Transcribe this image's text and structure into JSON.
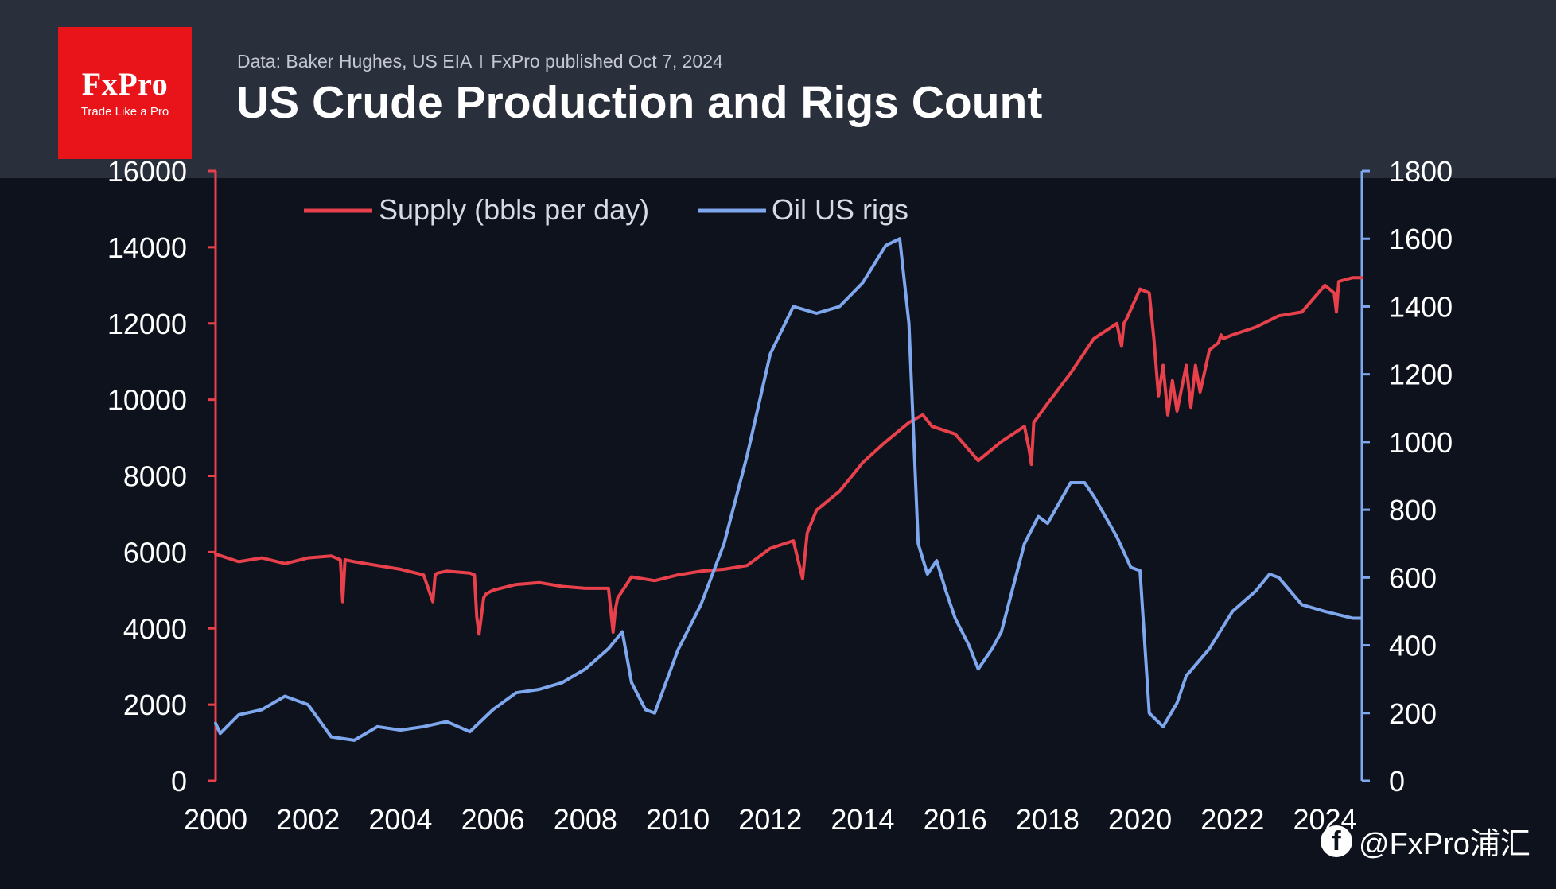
{
  "header": {
    "logo_brand": "FxPro",
    "logo_tagline": "Trade Like a Pro",
    "source_text": "Data: Baker Hughes, US EIA",
    "published_text": "FxPro published Oct 7, 2024",
    "title": "US Crude Production and Rigs Count"
  },
  "watermark": {
    "icon": "facebook-icon",
    "text": "@FxPro浦汇"
  },
  "colors": {
    "supply": "#e8414b",
    "rigs": "#7ea7ee",
    "background": "#0d121c",
    "header": "#2a2f3c",
    "logo": "#e8141a"
  },
  "chart_data": {
    "type": "line",
    "title": "US Crude Production and Rigs Count",
    "x_ticks": [
      "2000",
      "2002",
      "2004",
      "2006",
      "2008",
      "2010",
      "2012",
      "2014",
      "2016",
      "2018",
      "2020",
      "2022",
      "2024"
    ],
    "xlim": [
      2000,
      2024.8
    ],
    "y_left": {
      "ticks": [
        "0",
        "2000",
        "4000",
        "6000",
        "8000",
        "10000",
        "12000",
        "14000",
        "16000"
      ],
      "lim": [
        0,
        16000
      ]
    },
    "y_right": {
      "ticks": [
        "0",
        "200",
        "400",
        "600",
        "800",
        "1000",
        "1200",
        "1400",
        "1600",
        "1800"
      ],
      "lim": [
        0,
        1800
      ]
    },
    "legend": {
      "position": "top-left",
      "entries": [
        "Supply (bbls per day)",
        "Oil US rigs"
      ]
    },
    "grid": false,
    "series": [
      {
        "name": "Supply (bbls per day)",
        "axis": "left",
        "x": [
          2000,
          2000.5,
          2001,
          2001.5,
          2002,
          2002.5,
          2002.7,
          2002.75,
          2002.8,
          2003,
          2003.5,
          2004,
          2004.5,
          2004.7,
          2004.75,
          2004.8,
          2005,
          2005.5,
          2005.6,
          2005.65,
          2005.7,
          2005.8,
          2005.85,
          2006,
          2006.5,
          2007,
          2007.5,
          2008,
          2008.5,
          2008.6,
          2008.65,
          2008.7,
          2009,
          2009.5,
          2010,
          2010.5,
          2011,
          2011.5,
          2012,
          2012.5,
          2012.7,
          2012.8,
          2013,
          2013.5,
          2014,
          2014.5,
          2015,
          2015.3,
          2015.5,
          2016,
          2016.5,
          2017,
          2017.5,
          2017.6,
          2017.65,
          2017.7,
          2018,
          2018.5,
          2019,
          2019.5,
          2019.6,
          2019.65,
          2019.7,
          2020,
          2020.2,
          2020.3,
          2020.4,
          2020.5,
          2020.6,
          2020.7,
          2020.8,
          2021,
          2021.1,
          2021.2,
          2021.3,
          2021.5,
          2021.7,
          2021.75,
          2021.8,
          2022,
          2022.5,
          2023,
          2023.5,
          2024,
          2024.2,
          2024.25,
          2024.3,
          2024.6,
          2024.8
        ],
        "values": [
          5950,
          5750,
          5850,
          5700,
          5850,
          5900,
          5800,
          4700,
          5800,
          5750,
          5650,
          5550,
          5400,
          4700,
          5400,
          5450,
          5500,
          5450,
          5400,
          4300,
          3850,
          4800,
          4900,
          5000,
          5150,
          5200,
          5100,
          5050,
          5050,
          3900,
          4500,
          4800,
          5350,
          5250,
          5400,
          5500,
          5550,
          5650,
          6100,
          6300,
          5300,
          6500,
          7100,
          7600,
          8350,
          8900,
          9400,
          9600,
          9300,
          9100,
          8400,
          8900,
          9300,
          8700,
          8300,
          9400,
          9900,
          10700,
          11600,
          12000,
          11400,
          12000,
          12100,
          12900,
          12800,
          11600,
          10100,
          10900,
          9600,
          10500,
          9700,
          10900,
          9800,
          10900,
          10200,
          11300,
          11500,
          11700,
          11600,
          11700,
          11900,
          12200,
          12300,
          13000,
          12800,
          12300,
          13100,
          13200,
          13200
        ]
      },
      {
        "name": "Oil US rigs",
        "axis": "right",
        "x": [
          2000,
          2000.1,
          2000.5,
          2001,
          2001.5,
          2002,
          2002.5,
          2003,
          2003.5,
          2004,
          2004.5,
          2005,
          2005.5,
          2006,
          2006.5,
          2007,
          2007.5,
          2008,
          2008.5,
          2008.8,
          2009,
          2009.3,
          2009.5,
          2010,
          2010.5,
          2011,
          2011.5,
          2012,
          2012.5,
          2013,
          2013.5,
          2014,
          2014.5,
          2014.8,
          2015,
          2015.2,
          2015.4,
          2015.6,
          2015.8,
          2016,
          2016.3,
          2016.5,
          2016.8,
          2017,
          2017.5,
          2017.8,
          2018,
          2018.5,
          2018.8,
          2019,
          2019.5,
          2019.8,
          2020,
          2020.2,
          2020.5,
          2020.8,
          2021,
          2021.5,
          2022,
          2022.5,
          2022.8,
          2023,
          2023.5,
          2024,
          2024.3,
          2024.6,
          2024.8
        ],
        "values": [
          170,
          140,
          195,
          210,
          250,
          225,
          130,
          120,
          160,
          150,
          160,
          175,
          145,
          210,
          260,
          270,
          290,
          330,
          390,
          440,
          290,
          210,
          200,
          385,
          520,
          700,
          960,
          1260,
          1400,
          1380,
          1400,
          1470,
          1580,
          1600,
          1350,
          700,
          610,
          650,
          560,
          480,
          400,
          330,
          390,
          440,
          700,
          780,
          760,
          880,
          880,
          840,
          720,
          630,
          620,
          200,
          160,
          230,
          310,
          390,
          500,
          560,
          610,
          600,
          520,
          500,
          490,
          480,
          480
        ]
      }
    ]
  }
}
